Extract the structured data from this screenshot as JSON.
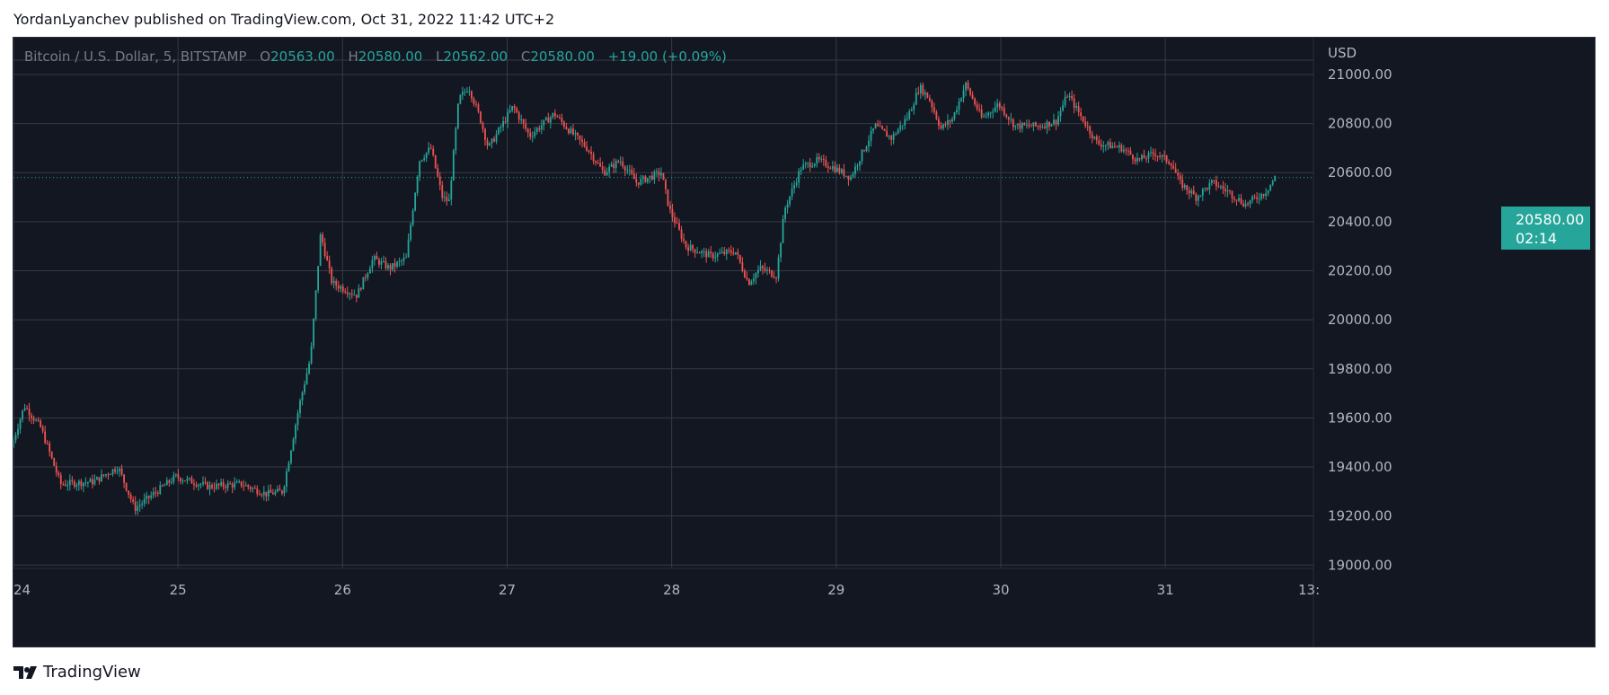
{
  "publish_line": "YordanLyanchev published on TradingView.com, Oct 31, 2022 11:42 UTC+2",
  "legend": {
    "symbol": "Bitcoin / U.S. Dollar, 5, BITSTAMP",
    "open_label": "O",
    "open": "20563.00",
    "high_label": "H",
    "high": "20580.00",
    "low_label": "L",
    "low": "20562.00",
    "close_label": "C",
    "close": "20580.00",
    "change": "+19.00 (+0.09%)"
  },
  "price_tag": {
    "price": "20580.00",
    "countdown": "02:14"
  },
  "brand": {
    "name": "TradingView",
    "logo_icon": "tradingview-logo-icon"
  },
  "colors": {
    "background": "#131722",
    "grid": "#363a45",
    "up": "#26a69a",
    "down": "#ef5350",
    "axis_text": "#b2b5be"
  },
  "chart_data": {
    "type": "candlestick",
    "currency_label": "USD",
    "y_ticks": [
      "19000.00",
      "19200.00",
      "19400.00",
      "19600.00",
      "19800.00",
      "20000.00",
      "20200.00",
      "20400.00",
      "20600.00",
      "20800.00",
      "21000.00"
    ],
    "ylim": [
      18990,
      21150
    ],
    "x_ticks": [
      "24",
      "25",
      "26",
      "27",
      "28",
      "29",
      "30",
      "31",
      "13:"
    ],
    "x_range_days": [
      24.0,
      31.9
    ],
    "last_price": 20580,
    "grid": true,
    "price_path": [
      [
        24.0,
        19480
      ],
      [
        24.08,
        19650
      ],
      [
        24.18,
        19560
      ],
      [
        24.3,
        19330
      ],
      [
        24.5,
        19340
      ],
      [
        24.65,
        19400
      ],
      [
        24.75,
        19230
      ],
      [
        25.0,
        19360
      ],
      [
        25.2,
        19320
      ],
      [
        25.4,
        19330
      ],
      [
        25.55,
        19290
      ],
      [
        25.65,
        19300
      ],
      [
        25.75,
        19650
      ],
      [
        25.82,
        19850
      ],
      [
        25.88,
        20350
      ],
      [
        25.95,
        20150
      ],
      [
        26.1,
        20100
      ],
      [
        26.2,
        20250
      ],
      [
        26.3,
        20210
      ],
      [
        26.4,
        20250
      ],
      [
        26.48,
        20650
      ],
      [
        26.55,
        20700
      ],
      [
        26.62,
        20500
      ],
      [
        26.66,
        20480
      ],
      [
        26.72,
        20900
      ],
      [
        26.78,
        20950
      ],
      [
        26.85,
        20820
      ],
      [
        26.9,
        20700
      ],
      [
        27.05,
        20870
      ],
      [
        27.15,
        20750
      ],
      [
        27.3,
        20840
      ],
      [
        27.38,
        20780
      ],
      [
        27.5,
        20700
      ],
      [
        27.6,
        20600
      ],
      [
        27.7,
        20650
      ],
      [
        27.8,
        20560
      ],
      [
        27.95,
        20600
      ],
      [
        28.0,
        20450
      ],
      [
        28.1,
        20300
      ],
      [
        28.25,
        20260
      ],
      [
        28.4,
        20280
      ],
      [
        28.48,
        20150
      ],
      [
        28.55,
        20210
      ],
      [
        28.65,
        20180
      ],
      [
        28.7,
        20450
      ],
      [
        28.8,
        20620
      ],
      [
        28.9,
        20650
      ],
      [
        29.0,
        20620
      ],
      [
        29.1,
        20580
      ],
      [
        29.25,
        20790
      ],
      [
        29.35,
        20740
      ],
      [
        29.45,
        20830
      ],
      [
        29.52,
        20950
      ],
      [
        29.58,
        20900
      ],
      [
        29.65,
        20780
      ],
      [
        29.72,
        20820
      ],
      [
        29.8,
        20960
      ],
      [
        29.9,
        20820
      ],
      [
        30.0,
        20880
      ],
      [
        30.1,
        20790
      ],
      [
        30.25,
        20790
      ],
      [
        30.35,
        20810
      ],
      [
        30.42,
        20920
      ],
      [
        30.5,
        20830
      ],
      [
        30.6,
        20720
      ],
      [
        30.75,
        20700
      ],
      [
        30.85,
        20650
      ],
      [
        30.95,
        20680
      ],
      [
        31.05,
        20640
      ],
      [
        31.1,
        20560
      ],
      [
        31.2,
        20500
      ],
      [
        31.3,
        20560
      ],
      [
        31.4,
        20520
      ],
      [
        31.5,
        20470
      ],
      [
        31.62,
        20520
      ],
      [
        31.68,
        20580
      ]
    ]
  }
}
